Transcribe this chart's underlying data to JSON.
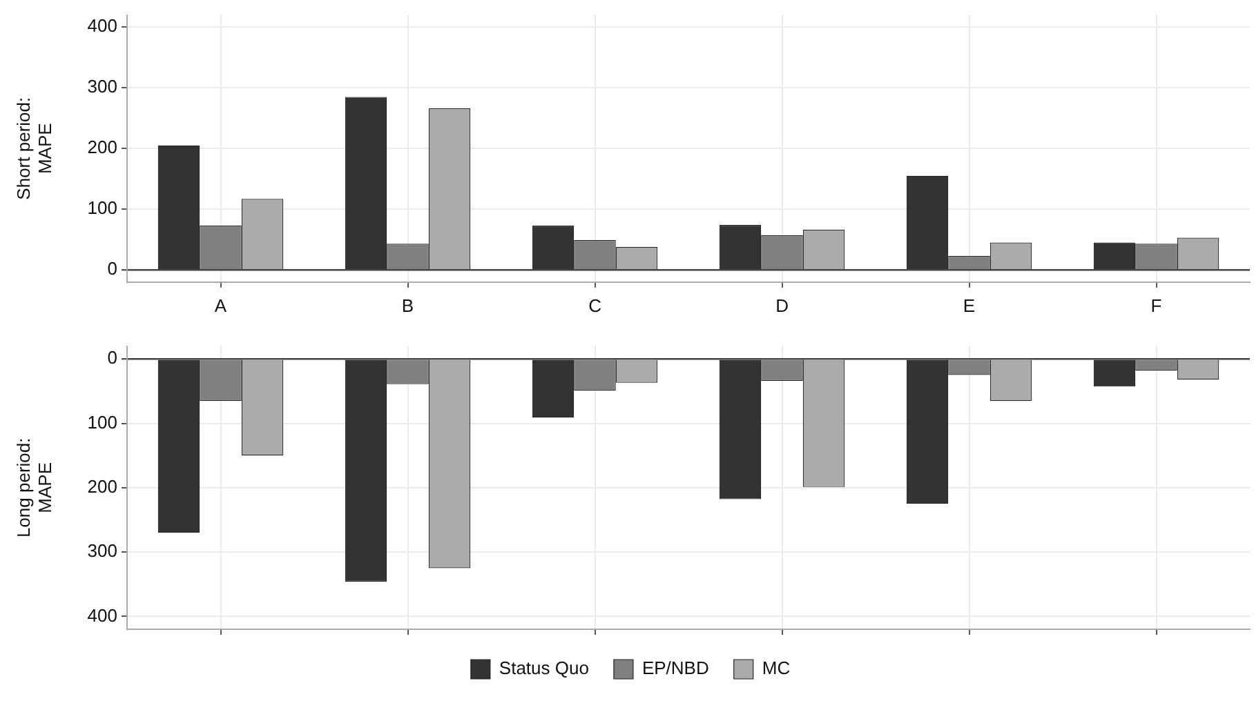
{
  "chart_data": [
    {
      "type": "bar",
      "ylabel": "Short period:\nMAPE",
      "categories": [
        "A",
        "B",
        "C",
        "D",
        "E",
        "F"
      ],
      "series": [
        {
          "color": "#333333",
          "values": [
            205,
            285,
            73,
            74,
            155,
            45
          ]
        },
        {
          "color": "#808080",
          "values": [
            73,
            43,
            49,
            57,
            23,
            43
          ]
        },
        {
          "color": "#ababab",
          "values": [
            117,
            266,
            38,
            66,
            45,
            53
          ]
        }
      ],
      "ylim": [
        -20,
        420
      ],
      "yticks": [
        0,
        100,
        200,
        300,
        400
      ],
      "grid": true,
      "legend": false
    },
    {
      "type": "bar",
      "ylabel": "Long period:\nMAPE",
      "categories": [
        null,
        null,
        null,
        null,
        null,
        null
      ],
      "series": [
        {
          "name": "Status Quo",
          "color": "#333333",
          "values": [
            270,
            346,
            91,
            218,
            225,
            43
          ]
        },
        {
          "name": "EP/NBD",
          "color": "#808080",
          "values": [
            65,
            39,
            49,
            34,
            25,
            18
          ]
        },
        {
          "name": "MC",
          "color": "#ababab",
          "values": [
            150,
            325,
            37,
            199,
            65,
            32
          ]
        }
      ],
      "ylim": [
        420,
        -20
      ],
      "yticks": [
        0,
        100,
        200,
        300,
        400
      ],
      "grid": true,
      "legend": "bottom",
      "tick_labels": "y"
    }
  ]
}
